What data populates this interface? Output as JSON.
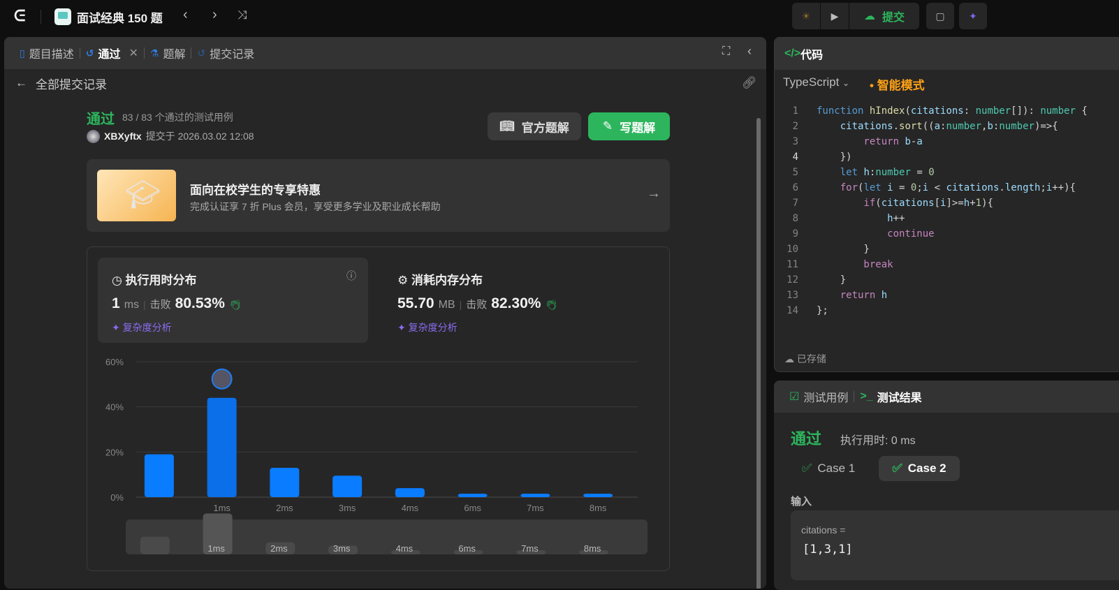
{
  "topbar": {
    "problem_list": "面试经典 150 题",
    "prev": "‹",
    "next": "›",
    "submit": "提交"
  },
  "colors": {
    "accent_green": "#2db55d",
    "bar_blue": "#0a7cff",
    "purple": "#8a6cf0",
    "orange": "#ffa116"
  },
  "left": {
    "tabs": [
      {
        "label": "题目描述",
        "icon": "document-icon"
      },
      {
        "label": "通过",
        "icon": "history-icon",
        "closable": true
      },
      {
        "label": "题解",
        "icon": "flask-icon"
      },
      {
        "label": "提交记录",
        "icon": "history-icon"
      }
    ],
    "back_label": "全部提交记录",
    "status": "通过",
    "testcases": "83 / 83 个通过的测试用例",
    "user": "XBXyftx",
    "submitted_at": "提交于 2026.03.02 12:08",
    "official_solution": "官方题解",
    "write_solution": "写题解",
    "promo": {
      "title": "面向在校学生的专享特惠",
      "subtitle": "完成认证享 7 折 Plus 会员，享受更多学业及职业成长帮助"
    },
    "runtime": {
      "title": "执行用时分布",
      "value": "1",
      "unit": "ms",
      "beat_label": "击败",
      "beat": "80.53%",
      "analysis": "复杂度分析"
    },
    "memory": {
      "title": "消耗内存分布",
      "value": "55.70",
      "unit": "MB",
      "beat_label": "击败",
      "beat": "82.30%",
      "analysis": "复杂度分析"
    }
  },
  "chart_data": {
    "type": "bar",
    "categories": [
      "",
      "1ms",
      "2ms",
      "3ms",
      "4ms",
      "6ms",
      "7ms",
      "8ms"
    ],
    "values": [
      19,
      44,
      13,
      9.5,
      4,
      1.5,
      1.5,
      1.5
    ],
    "highlight_index": 1,
    "ylim": [
      0,
      60
    ],
    "yticks": [
      "0%",
      "20%",
      "40%",
      "60%"
    ],
    "grid": true
  },
  "right": {
    "code_title": "代码",
    "language": "TypeScript",
    "smart_mode": "智能模式",
    "saved": "已存储",
    "code": [
      [
        [
          "function ",
          "kw"
        ],
        [
          "hIndex",
          "fn"
        ],
        [
          "(",
          "p"
        ],
        [
          "citations",
          "var"
        ],
        [
          ": ",
          "p"
        ],
        [
          "number",
          "type"
        ],
        [
          "[]): ",
          "p"
        ],
        [
          "number",
          "type"
        ],
        [
          " {",
          "p"
        ]
      ],
      [
        [
          "    citations",
          "var"
        ],
        [
          ".",
          "p"
        ],
        [
          "sort",
          "fn"
        ],
        [
          "((",
          "p"
        ],
        [
          "a",
          "var"
        ],
        [
          ":",
          "p"
        ],
        [
          "number",
          "type"
        ],
        [
          ",",
          "p"
        ],
        [
          "b",
          "var"
        ],
        [
          ":",
          "p"
        ],
        [
          "number",
          "type"
        ],
        [
          ")=>{",
          "p"
        ]
      ],
      [
        [
          "        return ",
          "ctl"
        ],
        [
          "b",
          "var"
        ],
        [
          "-",
          "p"
        ],
        [
          "a",
          "var"
        ]
      ],
      [
        [
          "    })",
          "p"
        ]
      ],
      [
        [
          "    let ",
          "kw"
        ],
        [
          "h",
          "var"
        ],
        [
          ":",
          "p"
        ],
        [
          "number",
          "type"
        ],
        [
          " = ",
          "p"
        ],
        [
          "0",
          "num"
        ]
      ],
      [
        [
          "    for",
          "ctl"
        ],
        [
          "(",
          "p"
        ],
        [
          "let ",
          "kw"
        ],
        [
          "i",
          "var"
        ],
        [
          " = ",
          "p"
        ],
        [
          "0",
          "num"
        ],
        [
          ";",
          "p"
        ],
        [
          "i",
          "var"
        ],
        [
          " < ",
          "p"
        ],
        [
          "citations",
          "var"
        ],
        [
          ".",
          "p"
        ],
        [
          "length",
          "var"
        ],
        [
          ";",
          "p"
        ],
        [
          "i",
          "var"
        ],
        [
          "++){",
          "p"
        ]
      ],
      [
        [
          "        if",
          "ctl"
        ],
        [
          "(",
          "p"
        ],
        [
          "citations",
          "var"
        ],
        [
          "[",
          "p"
        ],
        [
          "i",
          "var"
        ],
        [
          "]>=",
          "p"
        ],
        [
          "h",
          "var"
        ],
        [
          "+",
          "p"
        ],
        [
          "1",
          "num"
        ],
        [
          "){",
          "p"
        ]
      ],
      [
        [
          "            h",
          "var"
        ],
        [
          "++",
          "p"
        ]
      ],
      [
        [
          "            continue",
          "ctl"
        ]
      ],
      [
        [
          "        }",
          "p"
        ]
      ],
      [
        [
          "        break",
          "ctl"
        ]
      ],
      [
        [
          "    }",
          "p"
        ]
      ],
      [
        [
          "    return ",
          "ctl"
        ],
        [
          "h",
          "var"
        ]
      ],
      [
        [
          "};",
          "p"
        ]
      ]
    ],
    "tabs": [
      "测试用例",
      "测试结果"
    ],
    "result": {
      "status": "通过",
      "runtime": "执行用时: 0 ms"
    },
    "cases": [
      "Case 1",
      "Case 2"
    ],
    "input_label": "输入",
    "param": "citations =",
    "param_value": "[1,3,1]"
  }
}
